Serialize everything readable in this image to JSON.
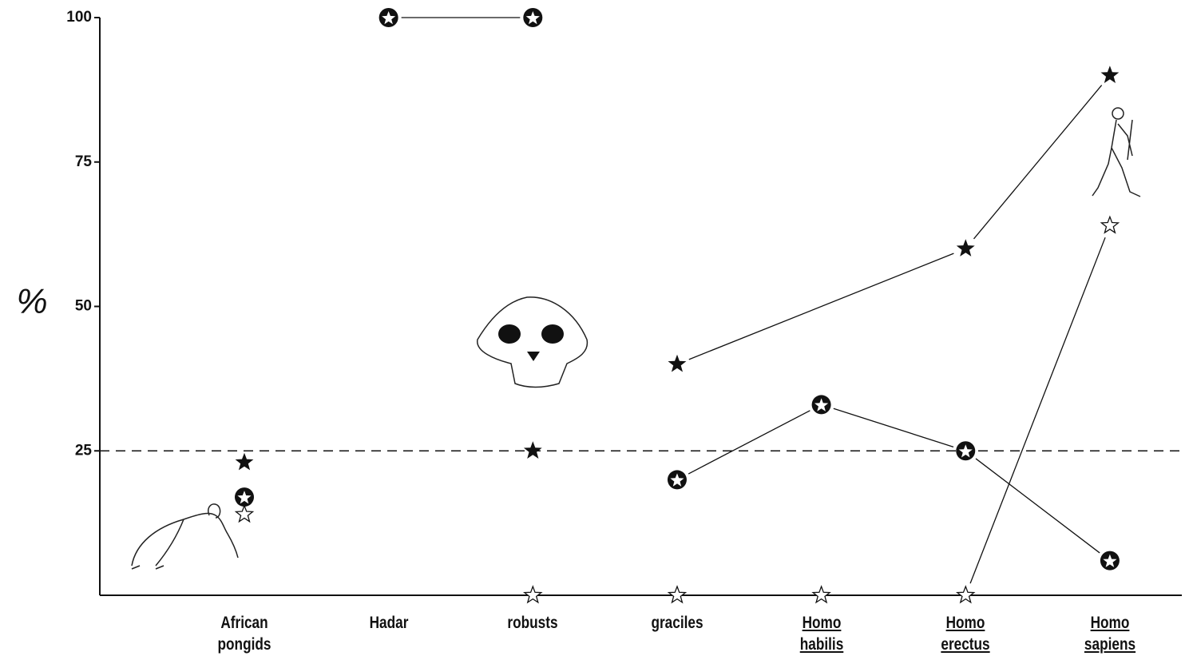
{
  "chart_data": {
    "type": "line",
    "y_label": "%",
    "categories": [
      "African pongids",
      "Hadar",
      "robusts",
      "graciles",
      "Homo habilis",
      "Homo erectus",
      "Homo sapiens"
    ],
    "underlined": [
      false,
      false,
      false,
      false,
      true,
      true,
      true
    ],
    "ylim": [
      0,
      100
    ],
    "yticks": [
      25,
      50,
      75,
      100
    ],
    "reference_line": 25,
    "color": "#111111",
    "series": [
      {
        "marker": "filled-star",
        "line": false,
        "x": [
          "African pongids",
          "robusts"
        ],
        "values": [
          23,
          25
        ]
      },
      {
        "marker": "filled-star",
        "line": true,
        "x": [
          "graciles",
          "Homo erectus",
          "Homo sapiens"
        ],
        "values": [
          40,
          60,
          90
        ]
      },
      {
        "marker": "circle-star",
        "line": true,
        "x": [
          "Hadar",
          "robusts"
        ],
        "values": [
          100,
          100
        ]
      },
      {
        "marker": "circle-star",
        "line": false,
        "x": [
          "African pongids"
        ],
        "values": [
          17
        ]
      },
      {
        "marker": "circle-star",
        "line": true,
        "x": [
          "graciles",
          "Homo habilis",
          "Homo erectus",
          "Homo sapiens"
        ],
        "values": [
          20,
          33,
          25,
          6
        ]
      },
      {
        "marker": "open-star",
        "line": false,
        "x": [
          "African pongids"
        ],
        "values": [
          14
        ]
      },
      {
        "marker": "open-star",
        "line": true,
        "x": [
          "robusts",
          "graciles",
          "Homo habilis",
          "Homo erectus",
          "Homo sapiens"
        ],
        "values": [
          0,
          0,
          0,
          0,
          64
        ]
      }
    ]
  }
}
